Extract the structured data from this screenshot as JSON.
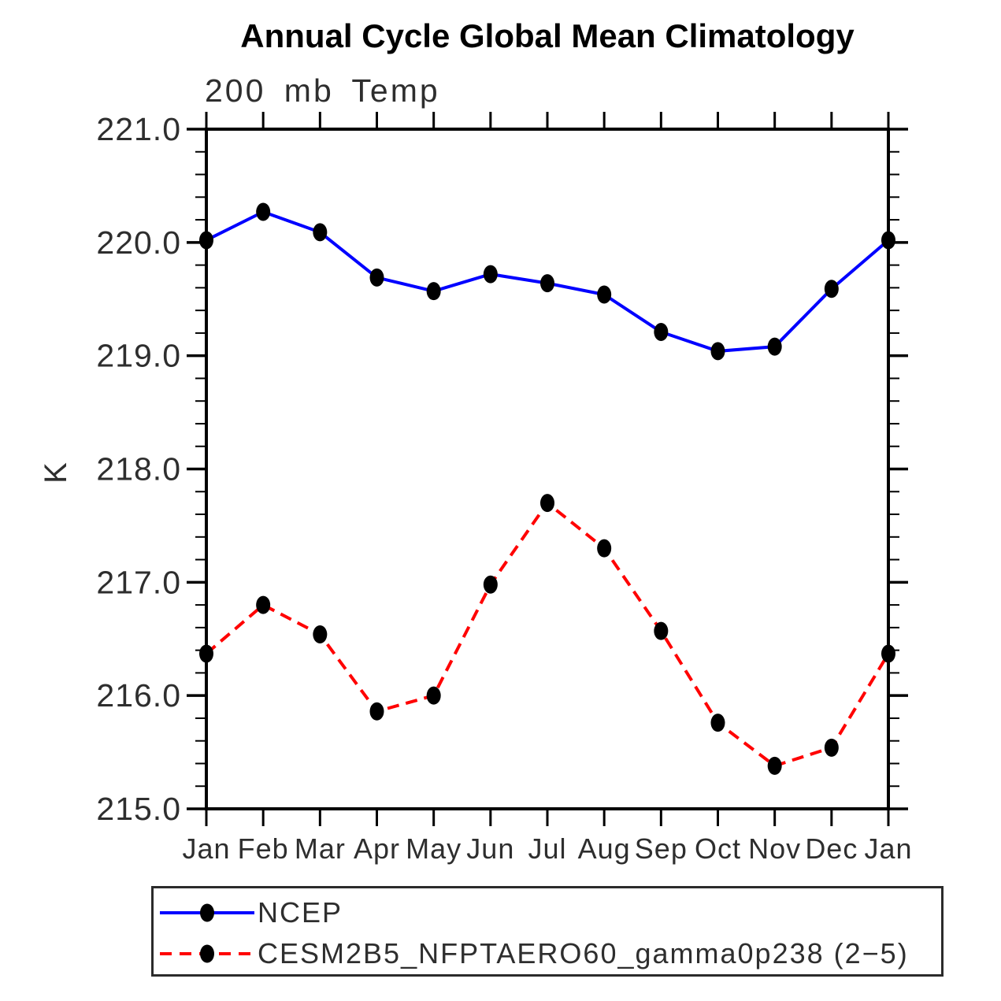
{
  "chart_data": {
    "type": "line",
    "title": "Annual Cycle Global Mean Climatology",
    "subtitle": "200 mb Temp",
    "ylabel": "K",
    "xlabel": "",
    "categories": [
      "Jan",
      "Feb",
      "Mar",
      "Apr",
      "May",
      "Jun",
      "Jul",
      "Aug",
      "Sep",
      "Oct",
      "Nov",
      "Dec",
      "Jan"
    ],
    "ylim": [
      215.0,
      221.0
    ],
    "ytick_interval": 1.0,
    "yminor_interval": 0.2,
    "ytick_labels": [
      "215.0",
      "216.0",
      "217.0",
      "218.0",
      "219.0",
      "220.0",
      "221.0"
    ],
    "grid": false,
    "legend_position": "bottom-left-box",
    "frame_color": "#000000",
    "series": [
      {
        "name": "NCEP",
        "color": "#0000ff",
        "line_style": "solid",
        "marker": "filled-ellipse",
        "marker_color": "#000000",
        "values": [
          220.02,
          220.27,
          220.09,
          219.69,
          219.57,
          219.72,
          219.64,
          219.54,
          219.21,
          219.04,
          219.08,
          219.59,
          220.02
        ]
      },
      {
        "name": "CESM2B5_NFPTAERO60_gamma0p238 (2−5)",
        "color": "#ff0000",
        "line_style": "dashed",
        "marker": "filled-ellipse",
        "marker_color": "#000000",
        "values": [
          216.37,
          216.8,
          216.54,
          215.86,
          216.0,
          216.98,
          217.7,
          217.3,
          216.57,
          215.76,
          215.38,
          215.54,
          216.37
        ]
      }
    ]
  }
}
